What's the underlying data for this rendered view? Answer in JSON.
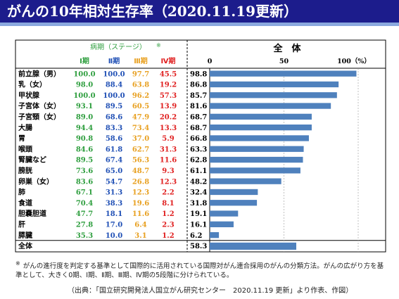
{
  "title": "がんの10年相対生存率（2020.11.19更新）",
  "header": {
    "stage_group": "病期（ステージ）",
    "stage_mark": "※",
    "stages": [
      "Ⅰ期",
      "Ⅱ期",
      "Ⅲ期",
      "Ⅳ期"
    ],
    "overall": "全　体"
  },
  "colors": {
    "title_bg": "#1c1c8c",
    "stage1": "#2e9e3e",
    "stage2": "#1f4fb5",
    "stage3": "#e8a020",
    "stage4": "#e02020",
    "bar": "#4f81bd"
  },
  "chart_data": {
    "type": "table",
    "title": "がんの10年相対生存率（2020.11.19更新）",
    "xlim": [
      0,
      100
    ],
    "x_ticks": [
      "0",
      "50",
      "100（%）"
    ],
    "rows": [
      {
        "label": "前立腺（男）",
        "s1": "100.0",
        "s2": "100.0",
        "s3": "97.7",
        "s4": "45.5",
        "total": 98.8
      },
      {
        "label": "乳（女）",
        "s1": "98.0",
        "s2": "88.4",
        "s3": "63.8",
        "s4": "19.2",
        "total": 86.8
      },
      {
        "label": "甲状腺",
        "s1": "100.0",
        "s2": "100.0",
        "s3": "96.2",
        "s4": "57.3",
        "total": 85.7
      },
      {
        "label": "子宮体（女）",
        "s1": "93.1",
        "s2": "89.5",
        "s3": "60.5",
        "s4": "13.9",
        "total": 81.6
      },
      {
        "label": "子宮頸（女）",
        "s1": "89.0",
        "s2": "68.6",
        "s3": "47.9",
        "s4": "20.2",
        "total": 68.7
      },
      {
        "label": "大腸",
        "s1": "94.4",
        "s2": "83.3",
        "s3": "73.4",
        "s4": "13.3",
        "total": 68.7
      },
      {
        "label": "胃",
        "s1": "90.8",
        "s2": "58.6",
        "s3": "37.0",
        "s4": "5.9",
        "total": 66.8
      },
      {
        "label": "喉頭",
        "s1": "84.6",
        "s2": "61.8",
        "s3": "62.7",
        "s4": "31.3",
        "total": 63.3
      },
      {
        "label": "腎臓など",
        "s1": "89.5",
        "s2": "67.4",
        "s3": "56.3",
        "s4": "11.6",
        "total": 62.8
      },
      {
        "label": "膀胱",
        "s1": "73.6",
        "s2": "65.0",
        "s3": "48.7",
        "s4": "9.3",
        "total": 61.1
      },
      {
        "label": "卵巣（女）",
        "s1": "83.6",
        "s2": "54.7",
        "s3": "26.8",
        "s4": "12.3",
        "total": 48.2
      },
      {
        "label": "肺",
        "s1": "67.1",
        "s2": "31.3",
        "s3": "12.3",
        "s4": "2.2",
        "total": 32.4
      },
      {
        "label": "食道",
        "s1": "70.4",
        "s2": "38.3",
        "s3": "19.6",
        "s4": "8.1",
        "total": 31.8
      },
      {
        "label": "胆嚢胆道",
        "s1": "47.7",
        "s2": "18.1",
        "s3": "11.6",
        "s4": "1.2",
        "total": 19.1
      },
      {
        "label": "肝",
        "s1": "27.8",
        "s2": "17.0",
        "s3": "6.4",
        "s4": "2.3",
        "total": 16.1
      },
      {
        "label": "膵臓",
        "s1": "35.3",
        "s2": "10.0",
        "s3": "3.1",
        "s4": "1.2",
        "total": 6.2
      }
    ],
    "all_row": {
      "label": "全体",
      "total": 58.3
    }
  },
  "footnote": {
    "mark": "※",
    "text": "がんの進行度を判定する基準として国際的に活用されている国際対がん連合採用のがんの分類方法。がんの広がり方を基準として、大きく0期、Ⅰ期、Ⅱ期、Ⅲ期、Ⅳ期の5段階に分けられている。"
  },
  "source": "（出典：「国立研究開発法人国立がん研究センター　2020.11.19 更新」より作表、作図）"
}
